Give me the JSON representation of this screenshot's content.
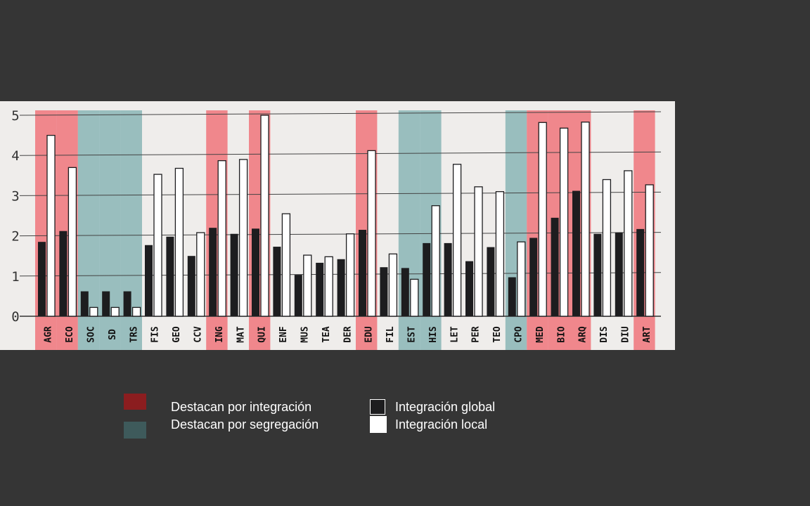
{
  "chart_data": {
    "type": "bar",
    "categories": [
      "AGR",
      "ECO",
      "SOC",
      "SD",
      "TRS",
      "FIS",
      "GEO",
      "CCV",
      "ING",
      "MAT",
      "QUI",
      "ENF",
      "MUS",
      "TEA",
      "DER",
      "EDU",
      "FIL",
      "EST",
      "HIS",
      "LET",
      "PER",
      "TEO",
      "CPO",
      "MED",
      "BIO",
      "ARQ",
      "DIS",
      "DIU",
      "ART"
    ],
    "series": [
      {
        "name": "Integración global",
        "values": [
          1.85,
          2.12,
          0.62,
          0.62,
          0.62,
          1.77,
          1.98,
          1.5,
          2.2,
          2.05,
          2.18,
          1.73,
          1.03,
          1.33,
          1.42,
          2.15,
          1.22,
          1.2,
          1.82,
          1.82,
          1.37,
          1.72,
          0.97,
          1.95,
          2.45,
          3.12,
          2.05,
          2.08,
          2.17
        ]
      },
      {
        "name": "Integración local",
        "values": [
          4.5,
          3.7,
          0.22,
          0.22,
          0.22,
          3.53,
          3.68,
          2.08,
          3.87,
          3.9,
          5.0,
          2.55,
          1.52,
          1.48,
          2.05,
          4.12,
          1.55,
          0.92,
          2.75,
          3.78,
          3.22,
          3.1,
          1.85,
          4.82,
          4.68,
          4.83,
          3.4,
          3.62,
          3.27
        ]
      }
    ],
    "highlight": {
      "integration": [
        "AGR",
        "ECO",
        "ING",
        "QUI",
        "EDU",
        "MED",
        "BIO",
        "ARQ",
        "ART"
      ],
      "segregation": [
        "SOC",
        "SD",
        "TRS",
        "EST",
        "HIS",
        "CPO"
      ]
    },
    "yticks": [
      "0",
      "1",
      "2",
      "3",
      "4",
      "5"
    ],
    "ylim": [
      0,
      5
    ],
    "grid": true,
    "colors": {
      "global_bar": "#1d1d1f",
      "local_bar": "#ffffff",
      "integration_band": "#f0646c",
      "segregation_band": "#5f9ea0",
      "integration_swatch": "#8b1d1f",
      "segregation_swatch": "#3e5a5b"
    }
  },
  "legend": {
    "integration_label": "Destacan por integración",
    "segregation_label": "Destacan por segregación",
    "global_label": "Integración global",
    "local_label": "Integración local"
  }
}
